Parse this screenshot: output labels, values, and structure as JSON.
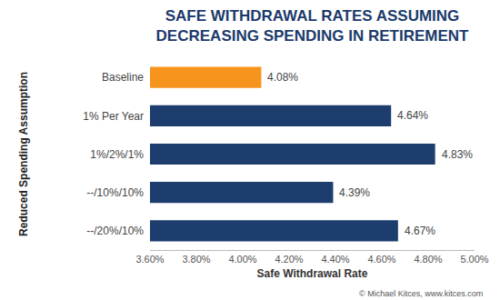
{
  "chart_data": {
    "type": "bar",
    "orientation": "horizontal",
    "title": "SAFE WITHDRAWAL RATES ASSUMING DECREASING SPENDING IN RETIREMENT",
    "x_label": "Safe Withdrawal Rate",
    "y_label": "Reduced Spending Assumption",
    "categories": [
      "Baseline",
      "1% Per Year",
      "1%/2%/1%",
      "--/10%/10%",
      "--/20%/10%"
    ],
    "values": [
      4.08,
      4.64,
      4.83,
      4.39,
      4.67
    ],
    "value_labels": [
      "4.08%",
      "4.64%",
      "4.83%",
      "4.39%",
      "4.67%"
    ],
    "colors": [
      "#f7941d",
      "#1c3d6e",
      "#1c3d6e",
      "#1c3d6e",
      "#1c3d6e"
    ],
    "data_labels": true,
    "grid": false,
    "xlim": [
      3.6,
      5.0
    ],
    "xticks": [
      {
        "value": 3.6,
        "label": "3.60%"
      },
      {
        "value": 3.8,
        "label": "3.80%"
      },
      {
        "value": 4.0,
        "label": "4.00%"
      },
      {
        "value": 4.2,
        "label": "4.20%"
      },
      {
        "value": 4.4,
        "label": "4.40%"
      },
      {
        "value": 4.6,
        "label": "4.60%"
      },
      {
        "value": 4.8,
        "label": "4.80%"
      },
      {
        "value": 5.0,
        "label": "5.00%"
      }
    ],
    "annotations": [
      "© Michael Kitces, www.kitces.com"
    ]
  }
}
